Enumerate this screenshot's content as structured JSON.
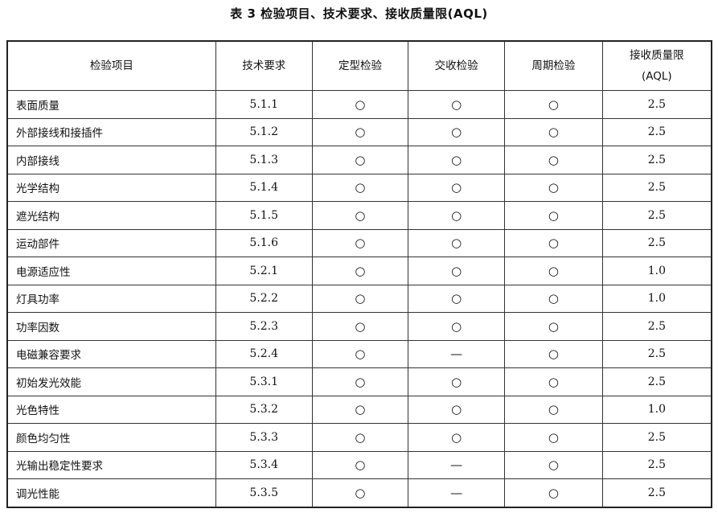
{
  "title": "表 3   检验项目、技术要求、接收质量限(AQL)",
  "columns": [
    "检验项目",
    "技术要求",
    "定型检验",
    "交收检验",
    "周期检验",
    "接收质量限(AQL)"
  ],
  "column_header_aql_line1": "接收质量限",
  "column_header_aql_line2": "(AQL)",
  "rows": [
    [
      "表面质量",
      "5.1.1",
      "○",
      "○",
      "○",
      "2.5"
    ],
    [
      "外部接线和接插件",
      "5.1.2",
      "○",
      "○",
      "○",
      "2.5"
    ],
    [
      "内部接线",
      "5.1.3",
      "○",
      "○",
      "○",
      "2.5"
    ],
    [
      "光学结构",
      "5.1.4",
      "○",
      "○",
      "○",
      "2.5"
    ],
    [
      "遮光结构",
      "5.1.5",
      "○",
      "○",
      "○",
      "2.5"
    ],
    [
      "运动部件",
      "5.1.6",
      "○",
      "○",
      "○",
      "2.5"
    ],
    [
      "电源适应性",
      "5.2.1",
      "○",
      "○",
      "○",
      "1.0"
    ],
    [
      "灯具功率",
      "5.2.2",
      "○",
      "○",
      "○",
      "1.0"
    ],
    [
      "功率因数",
      "5.2.3",
      "○",
      "○",
      "○",
      "2.5"
    ],
    [
      "电磁兼容要求",
      "5.2.4",
      "○",
      "—",
      "○",
      "2.5"
    ],
    [
      "初始发光效能",
      "5.3.1",
      "○",
      "○",
      "○",
      "2.5"
    ],
    [
      "光色特性",
      "5.3.2",
      "○",
      "○",
      "○",
      "1.0"
    ],
    [
      "颜色均匀性",
      "5.3.3",
      "○",
      "○",
      "○",
      "2.5"
    ],
    [
      "光输出稳定性要求",
      "5.3.4",
      "○",
      "—",
      "○",
      "2.5"
    ],
    [
      "调光性能",
      "5.3.5",
      "○",
      "—",
      "○",
      "2.5"
    ]
  ]
}
